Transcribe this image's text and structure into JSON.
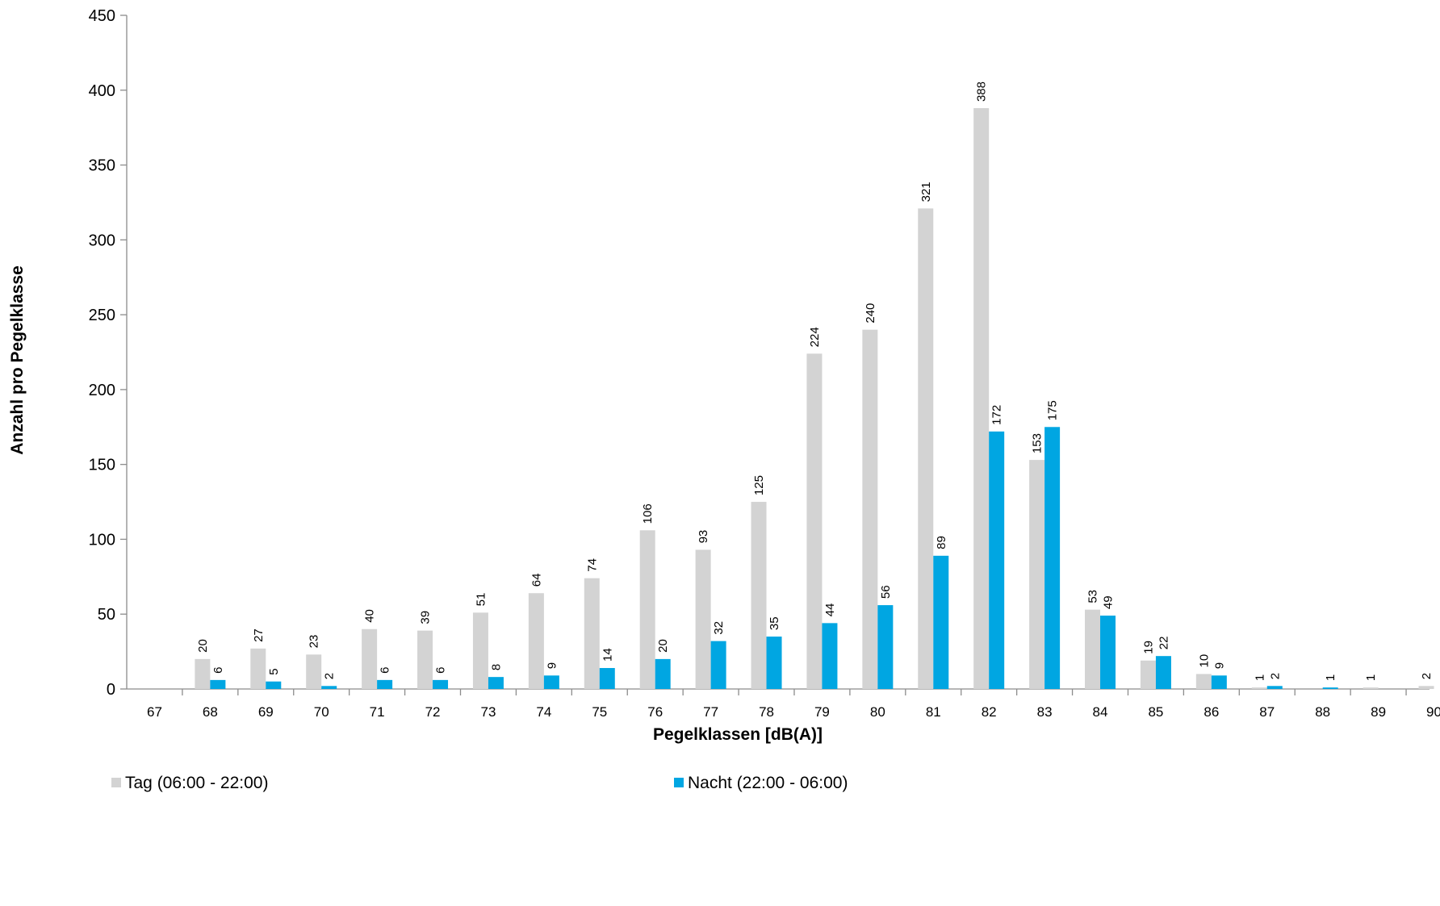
{
  "chart_data": {
    "type": "bar",
    "xlabel": "Pegelklassen [dB(A)]",
    "ylabel": "Anzahl pro Pegelklasse",
    "ylim": [
      0,
      450
    ],
    "yticks": [
      0,
      50,
      100,
      150,
      200,
      250,
      300,
      350,
      400,
      450
    ],
    "grid": false,
    "legend_position": "bottom",
    "categories": [
      "67",
      "68",
      "69",
      "70",
      "71",
      "72",
      "73",
      "74",
      "75",
      "76",
      "77",
      "78",
      "79",
      "80",
      "81",
      "82",
      "83",
      "84",
      "85",
      "86",
      "87",
      "88",
      "89",
      "90"
    ],
    "series": [
      {
        "name": "Tag (06:00 - 22:00)",
        "color": "#d3d3d3",
        "values": [
          null,
          20,
          27,
          23,
          40,
          39,
          51,
          64,
          74,
          106,
          93,
          125,
          224,
          240,
          321,
          388,
          153,
          53,
          19,
          10,
          1,
          null,
          1,
          2
        ]
      },
      {
        "name": "Nacht (22:00 - 06:00)",
        "color": "#00a6e2",
        "values": [
          null,
          6,
          5,
          2,
          6,
          6,
          8,
          9,
          14,
          20,
          32,
          35,
          44,
          56,
          89,
          172,
          175,
          49,
          22,
          9,
          2,
          1,
          null,
          null
        ]
      }
    ]
  }
}
